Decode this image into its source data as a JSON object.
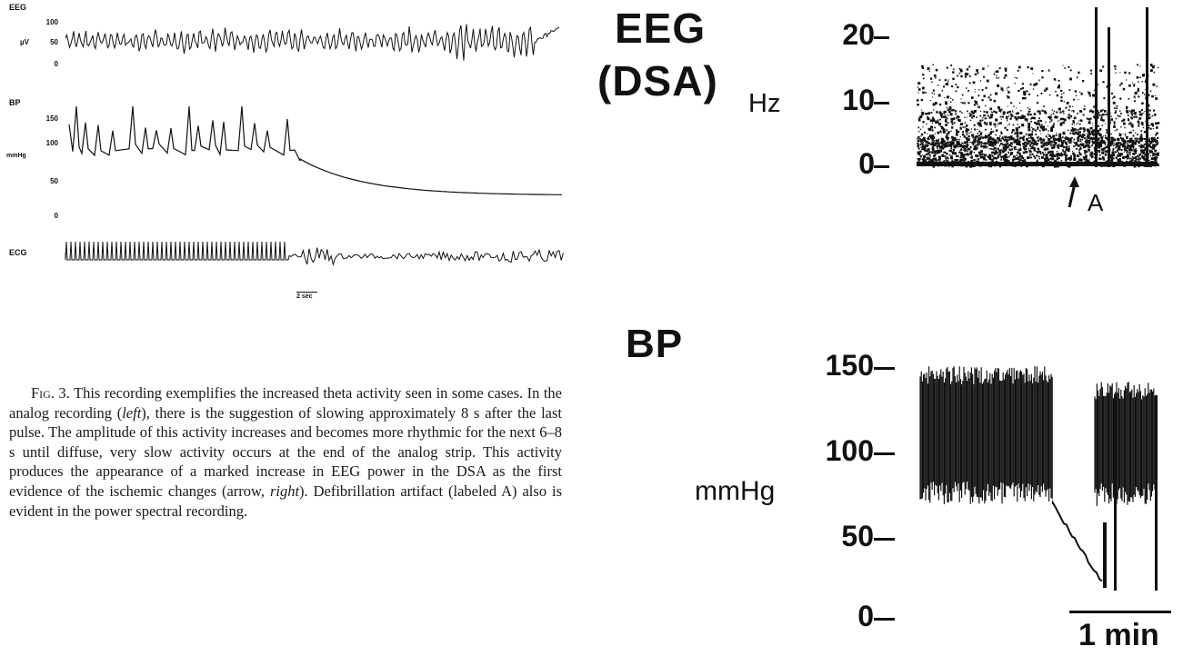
{
  "analog_panel": {
    "eeg": {
      "label": "EEG",
      "unit": "µV",
      "ticks": [
        "100",
        "50",
        "0"
      ]
    },
    "bp": {
      "label": "BP",
      "unit": "mmHg",
      "ticks": [
        "150",
        "100",
        "50",
        "0"
      ]
    },
    "ecg": {
      "label": "ECG"
    },
    "scale_bar": "2 sec"
  },
  "dsa_panel": {
    "title_line1": "EEG",
    "title_line2": "(DSA)",
    "unit": "Hz",
    "ticks": [
      "20",
      "10",
      "0"
    ],
    "marker_label": "A"
  },
  "bp_trend_panel": {
    "title": "BP",
    "unit": "mmHg",
    "ticks": [
      "150",
      "100",
      "50",
      "0"
    ],
    "scale_bar": "1 min"
  },
  "caption": {
    "fig_label": "Fig. 3.",
    "part1": " This recording exemplifies the increased theta activity seen in some cases. In the analog recording (",
    "left_word": "left",
    "part2": "), there is the suggestion of slowing approximately 8 s after the last pulse. The amplitude of this activity increases and becomes more rhythmic for the next 6–8 s until diffuse, very slow activity occurs at the end of the analog strip. This activity produces the appearance of a marked increase in EEG power in the DSA as the first evidence of the ischemic changes (arrow, ",
    "right_word": "right",
    "part3": "). Defibrillation artifact (labeled A) also is evident in the power spectral recording."
  }
}
